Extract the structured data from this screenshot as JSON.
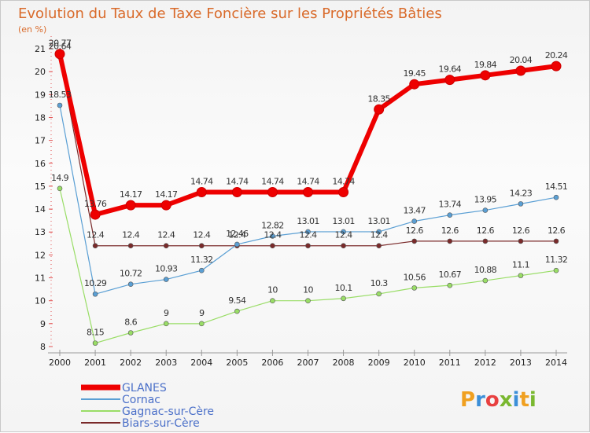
{
  "chart_data": {
    "type": "line",
    "title": "Evolution du Taux de Taxe Foncière sur les Propriétés Bâties",
    "unit_label": "(en %)",
    "x": [
      "2000",
      "2001",
      "2002",
      "2003",
      "2004",
      "2005",
      "2006",
      "2007",
      "2008",
      "2009",
      "2010",
      "2011",
      "2012",
      "2013",
      "2014"
    ],
    "ylim": [
      8,
      21
    ],
    "yticks": [
      8,
      9,
      10,
      11,
      12,
      13,
      14,
      15,
      16,
      17,
      18,
      19,
      20,
      21
    ],
    "series": [
      {
        "name": "GLANES",
        "color": "#ee0000",
        "values": [
          20.77,
          13.76,
          14.17,
          14.17,
          14.74,
          14.74,
          14.74,
          14.74,
          14.74,
          18.35,
          19.45,
          19.64,
          19.84,
          20.04,
          20.24
        ],
        "labels": [
          "20.77",
          "13.76",
          "14.17",
          "14.17",
          "14.74",
          "14.74",
          "14.74",
          "14.74",
          "14.74",
          "18.35",
          "19.45",
          "19.64",
          "19.84",
          "20.04",
          "20.24"
        ]
      },
      {
        "name": "Cornac",
        "color": "#5a9fd4",
        "values": [
          18.53,
          10.29,
          10.72,
          10.93,
          11.32,
          12.46,
          12.82,
          13.01,
          13.01,
          13.01,
          13.47,
          13.74,
          13.95,
          14.23,
          14.51
        ],
        "labels": [
          "18.53",
          "10.29",
          "10.72",
          "10.93",
          "11.32",
          "12.46",
          "12.82",
          "13.01",
          "13.01",
          "13.01",
          "13.47",
          "13.74",
          "13.95",
          "14.23",
          "14.51"
        ]
      },
      {
        "name": "Gagnac-sur-Cère",
        "color": "#99dd66",
        "values": [
          14.9,
          8.15,
          8.6,
          9,
          9,
          9.54,
          10,
          10,
          10.1,
          10.3,
          10.56,
          10.67,
          10.88,
          11.1,
          11.32
        ],
        "labels": [
          "14.9",
          "8.15",
          "8.6",
          "9",
          "9",
          "9.54",
          "10",
          "10",
          "10.1",
          "10.3",
          "10.56",
          "10.67",
          "10.88",
          "11.1",
          "11.32"
        ]
      },
      {
        "name": "Biars-sur-Cère",
        "color": "#7a2a2a",
        "values": [
          20.64,
          12.4,
          12.4,
          12.4,
          12.4,
          12.4,
          12.4,
          12.4,
          12.4,
          12.4,
          12.6,
          12.6,
          12.6,
          12.6,
          12.6
        ],
        "labels": [
          "20.64",
          "12.4",
          "12.4",
          "12.4",
          "12.4",
          "12.4",
          "12.4",
          "12.4",
          "12.4",
          "12.4",
          "12.6",
          "12.6",
          "12.6",
          "12.6",
          "12.6"
        ]
      }
    ],
    "legend_position": "bottom-left"
  },
  "logo": {
    "text": "Proxiti",
    "letters": [
      "P",
      "r",
      "o",
      "x",
      "i",
      "t",
      "i"
    ],
    "colors": [
      "#f0a020",
      "#3c8fd8",
      "#e84040",
      "#7ab830",
      "#3c8fd8",
      "#f0a020",
      "#7ab830"
    ]
  }
}
